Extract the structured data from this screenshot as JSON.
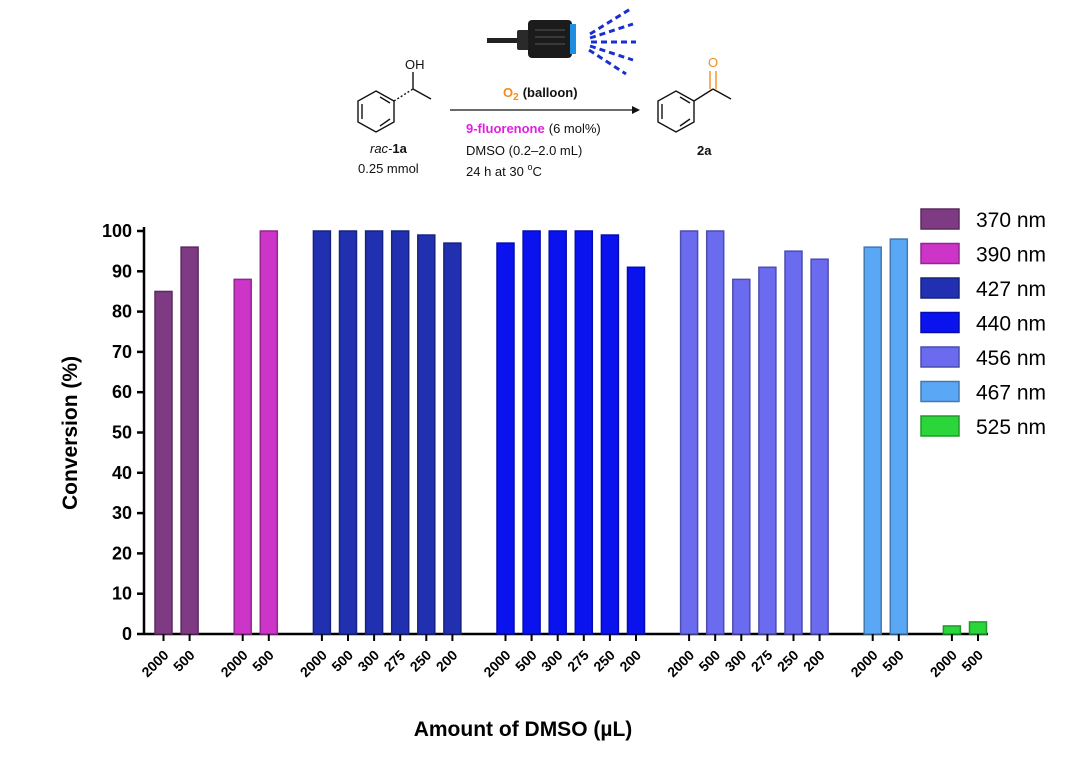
{
  "reaction": {
    "reactant_oh": "OH",
    "reactant_prefix": "rac-",
    "reactant_id": "1a",
    "reactant_amount": "0.25 mmol",
    "oxidant_formula": "O",
    "oxidant_subscript": "2",
    "oxidant_condition": "(balloon)",
    "catalyst_name": "9-fluorenone",
    "catalyst_loading": "(6 mol%)",
    "solvent": "DMSO (0.2–2.0 mL)",
    "time_temp_prefix": "24 h at 30 ",
    "time_temp_sup": "o",
    "time_temp_unit": "C",
    "product_o": "O",
    "product_id": "2a",
    "colors": {
      "oxidant": "#f28c1c",
      "catalyst": "#e020e0",
      "light": "#1a2fd0"
    }
  },
  "chart_data": {
    "type": "bar",
    "ylabel": "Conversion (%)",
    "xlabel": "Amount of DMSO (µL)",
    "ylim": [
      0,
      100
    ],
    "yticks": [
      "0",
      "10",
      "20",
      "30",
      "40",
      "50",
      "60",
      "70",
      "80",
      "90",
      "100"
    ],
    "legend_position": "top-right",
    "groups": [
      {
        "name": "370 nm",
        "color": "#7e3a82",
        "categories": [
          "2000",
          "500"
        ],
        "values": [
          85,
          96
        ]
      },
      {
        "name": "390 nm",
        "color": "#cc35c8",
        "categories": [
          "2000",
          "500"
        ],
        "values": [
          88,
          100
        ]
      },
      {
        "name": "427 nm",
        "color": "#2130b0",
        "categories": [
          "2000",
          "500",
          "300",
          "275",
          "250",
          "200"
        ],
        "values": [
          100,
          100,
          100,
          100,
          99,
          97
        ]
      },
      {
        "name": "440 nm",
        "color": "#0a12ee",
        "categories": [
          "2000",
          "500",
          "300",
          "275",
          "250",
          "200"
        ],
        "values": [
          97,
          100,
          100,
          100,
          99,
          91
        ]
      },
      {
        "name": "456 nm",
        "color": "#6b6bf0",
        "categories": [
          "2000",
          "500",
          "300",
          "275",
          "250",
          "200"
        ],
        "values": [
          100,
          100,
          88,
          91,
          95,
          93
        ]
      },
      {
        "name": "467 nm",
        "color": "#5aa8f5",
        "categories": [
          "2000",
          "500"
        ],
        "values": [
          96,
          98
        ]
      },
      {
        "name": "525 nm",
        "color": "#2bd63a",
        "categories": [
          "2000",
          "500"
        ],
        "values": [
          2,
          3
        ]
      }
    ]
  }
}
